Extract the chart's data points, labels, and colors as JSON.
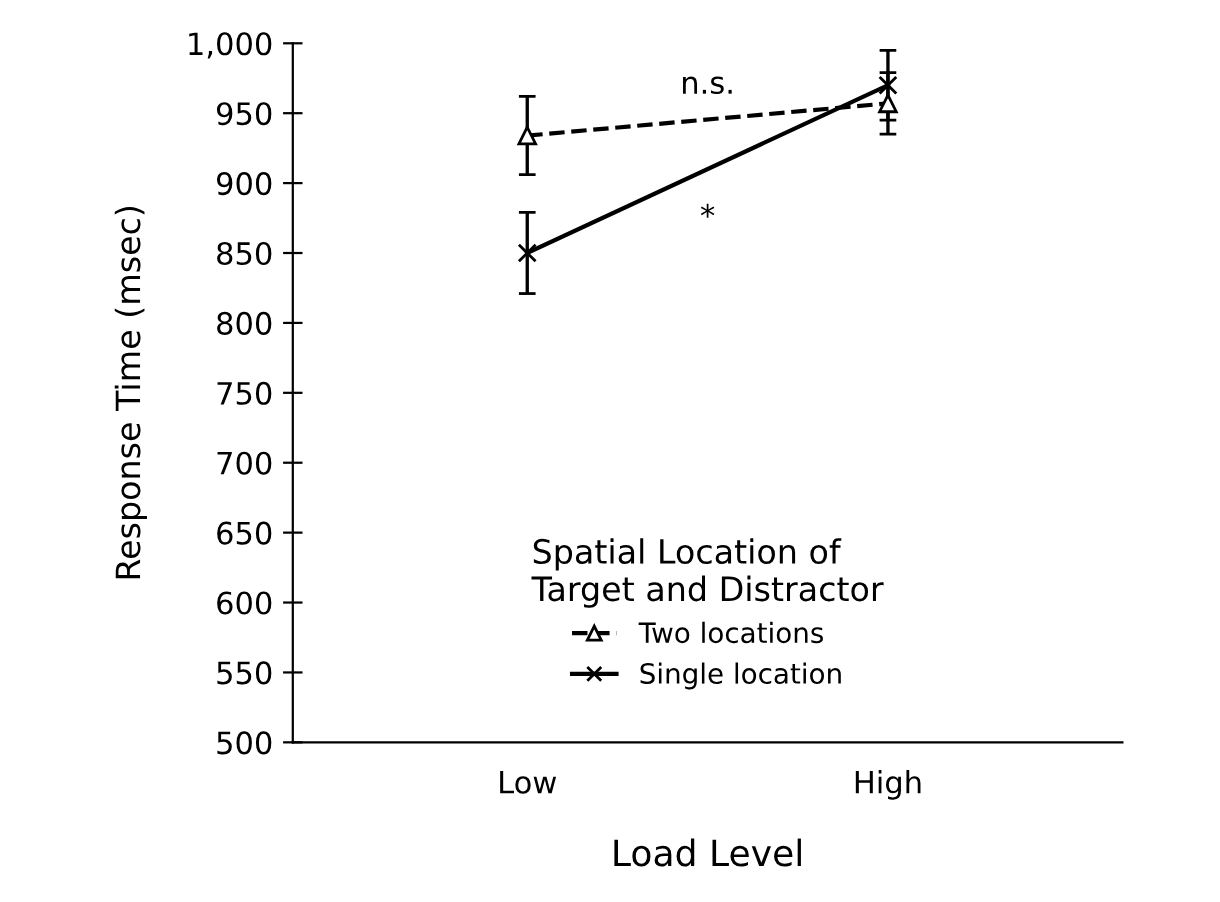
{
  "chart_data": {
    "type": "line",
    "xlabel": "Load Level",
    "ylabel": "Response Time (msec)",
    "legend_title": "Spatial Location of\nTarget and Distractor",
    "categories": [
      "Low",
      "High"
    ],
    "series": [
      {
        "name": "Two locations",
        "color": "#000000",
        "values": [
          934,
          957
        ],
        "errors": [
          28,
          22
        ],
        "marker": "triangle",
        "line_style": "dashed"
      },
      {
        "name": "Single location",
        "color": "#000000",
        "values": [
          850,
          970
        ],
        "errors": [
          29,
          25
        ],
        "marker": "cross",
        "line_style": "solid"
      }
    ],
    "ylim": [
      500,
      1000
    ],
    "yticks": [
      500,
      550,
      600,
      650,
      700,
      750,
      800,
      850,
      900,
      950,
      {
        "value": 1000,
        "label": "1,000"
      }
    ],
    "annotations": [
      "n.s.",
      "*"
    ],
    "grid": false,
    "legend": "bottom"
  }
}
